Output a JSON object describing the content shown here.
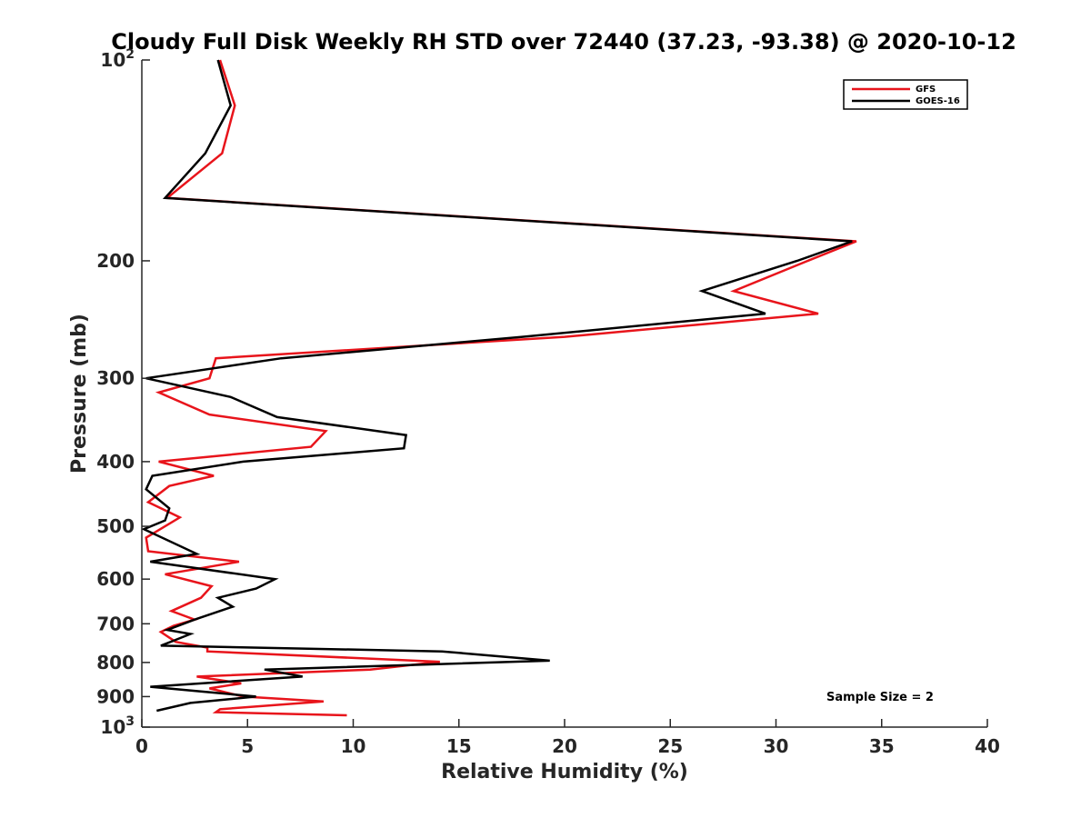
{
  "chart_data": {
    "type": "line",
    "title": "Cloudy Full Disk Weekly RH STD over 72440 (37.23, -93.38) @ 2020-10-12",
    "xlabel": "Relative Humidity (%)",
    "ylabel": "Pressure (mb)",
    "xlim": [
      0,
      40
    ],
    "ylim": [
      100,
      1000
    ],
    "y_scale": "log",
    "y_reversed": true,
    "grid": false,
    "legend_position": "top-right",
    "x_ticks": [
      "0",
      "5",
      "10",
      "15",
      "20",
      "25",
      "30",
      "35",
      "40"
    ],
    "y_ticks": [
      {
        "value": 100,
        "base": "10",
        "exp": "2"
      },
      {
        "value": 200,
        "label": "200"
      },
      {
        "value": 300,
        "label": "300"
      },
      {
        "value": 400,
        "label": "400"
      },
      {
        "value": 500,
        "label": "500"
      },
      {
        "value": 600,
        "label": "600"
      },
      {
        "value": 700,
        "label": "700"
      },
      {
        "value": 800,
        "label": "800"
      },
      {
        "value": 900,
        "label": "900"
      },
      {
        "value": 1000,
        "base": "10",
        "exp": "3"
      }
    ],
    "annotation": "Sample Size = 2",
    "series": [
      {
        "name": "GFS",
        "color": "#e8141b",
        "x": [
          3.7,
          4.4,
          3.8,
          1.2,
          33.8,
          31.5,
          28.0,
          32.0,
          20.0,
          3.5,
          3.2,
          0.8,
          3.2,
          8.7,
          8.0,
          0.8,
          3.4,
          1.3,
          0.3,
          1.8,
          0.2,
          0.3,
          4.6,
          1.1,
          3.3,
          2.8,
          1.4,
          2.5,
          1.5,
          0.9,
          1.6,
          3.1,
          3.1,
          14.1,
          10.8,
          2.6,
          4.7,
          3.2,
          4.8,
          8.6,
          3.7,
          3.5,
          9.7
        ],
        "y": [
          100,
          117,
          138,
          161,
          187,
          200,
          222,
          240,
          260,
          280,
          300,
          315,
          340,
          360,
          380,
          400,
          420,
          435,
          460,
          485,
          520,
          545,
          565,
          590,
          615,
          640,
          670,
          690,
          705,
          720,
          745,
          760,
          770,
          798,
          820,
          840,
          860,
          875,
          900,
          915,
          940,
          950,
          960
        ]
      },
      {
        "name": "GOES-16",
        "color": "#000000",
        "x": [
          3.6,
          4.2,
          3.0,
          1.1,
          33.6,
          31.0,
          26.5,
          29.5,
          18.0,
          6.6,
          0.2,
          4.2,
          6.4,
          12.5,
          12.4,
          4.8,
          0.5,
          0.2,
          1.3,
          1.1,
          0.1,
          2.6,
          0.4,
          6.3,
          5.4,
          3.6,
          4.3,
          2.5,
          1.2,
          2.3,
          1.6,
          0.9,
          14.2,
          19.3,
          5.8,
          7.6,
          0.4,
          5.4,
          2.3,
          0.7
        ],
        "y": [
          100,
          117,
          138,
          161,
          187,
          200,
          222,
          240,
          260,
          280,
          300,
          320,
          343,
          365,
          382,
          400,
          420,
          440,
          470,
          490,
          505,
          550,
          565,
          600,
          620,
          640,
          660,
          690,
          715,
          725,
          740,
          755,
          770,
          795,
          820,
          840,
          870,
          900,
          920,
          945
        ]
      }
    ]
  }
}
